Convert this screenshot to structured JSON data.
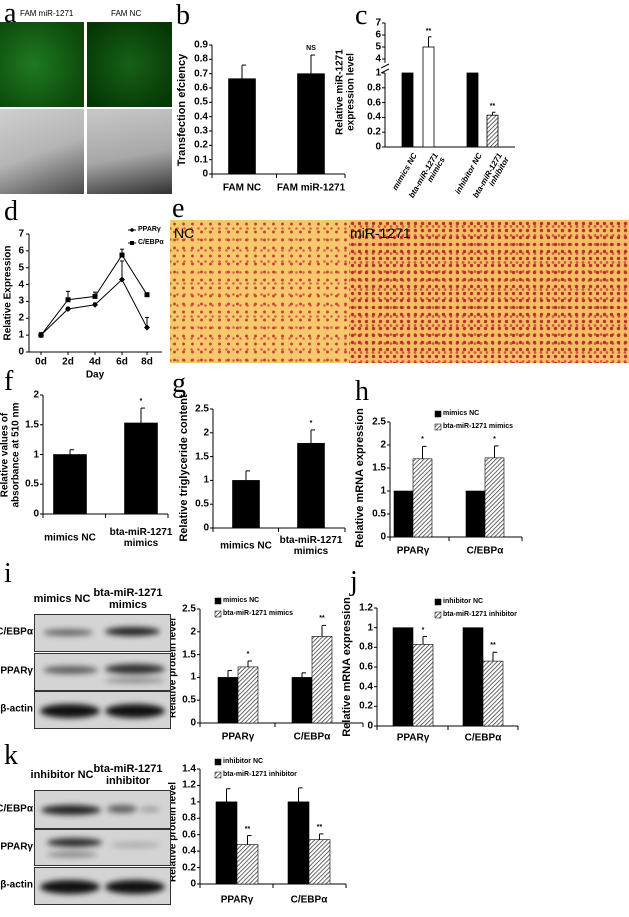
{
  "panels": {
    "a": "a",
    "b": "b",
    "c": "c",
    "d": "d",
    "e": "e",
    "f": "f",
    "g": "g",
    "h": "h",
    "i": "i",
    "j": "j",
    "k": "k"
  },
  "panel_a": {
    "left_label": "FAM miR-1271",
    "right_label": "FAM NC",
    "top_row": "fluorescence (green)",
    "bottom_row": "bright field"
  },
  "panel_e": {
    "left_label": "NC",
    "right_label": "miR-1271"
  },
  "panel_i_blot": {
    "columns": [
      "mimics NC",
      "bta-miR-1271 mimics"
    ],
    "rows": [
      "C/EBPα",
      "PPARγ",
      "β-actin"
    ]
  },
  "panel_k_blot": {
    "columns": [
      "inhibitor NC",
      "bta-miR-1271 inhibitor"
    ],
    "rows": [
      "C/EBPα",
      "PPARγ",
      "β-actin"
    ]
  },
  "colors": {
    "bar_black": "#000000",
    "hatch": "#555555",
    "green_fluorescence": "#1a6b1a",
    "oil_red": "#c8413a",
    "oil_background": "#f6c96c"
  },
  "chart_data": [
    {
      "panel": "b",
      "type": "bar",
      "ylabel": "Transfection efciency",
      "ylim": [
        0,
        0.9
      ],
      "yticks": [
        "0",
        "0.1",
        "0.2",
        "0.3",
        "0.4",
        "0.5",
        "0.6",
        "0.7",
        "0.8",
        "0.9"
      ],
      "categories": [
        "FAM NC",
        "FAM miR-1271"
      ],
      "series": [
        {
          "fill": "black",
          "values": [
            0.665,
            0.7
          ],
          "errors": [
            0.095,
            0.13
          ],
          "significance": [
            "",
            "NS"
          ]
        }
      ]
    },
    {
      "panel": "c",
      "type": "bar",
      "ylabel": "Relative miR-1271 expression level",
      "ylim": [
        0,
        7
      ],
      "axis_break": [
        1,
        4
      ],
      "yticks_lower": [
        "0",
        "0.2",
        "0.4",
        "0.6",
        "0.8",
        "1"
      ],
      "yticks_upper": [
        "4",
        "5",
        "6",
        "7"
      ],
      "categories": [
        "mimics NC",
        "bta-miR-1271 mimics",
        "inhibitor NC",
        "bta-miR-1271 inhibitor"
      ],
      "series": [
        {
          "fills": [
            "black",
            "white",
            "black",
            "hatch"
          ],
          "values": [
            1,
            5,
            1,
            0.43
          ],
          "errors": [
            0,
            0.85,
            0,
            0.04
          ],
          "significance": [
            "",
            "**",
            "",
            "**"
          ]
        }
      ]
    },
    {
      "panel": "d",
      "type": "line",
      "ylabel": "Relative Expression",
      "xlabel": "Day",
      "ylim": [
        0,
        7
      ],
      "yticks": [
        "0",
        "1",
        "2",
        "3",
        "4",
        "5",
        "6",
        "7"
      ],
      "categories": [
        "0d",
        "2d",
        "4d",
        "6d",
        "8d"
      ],
      "legend_position": "top-right",
      "series": [
        {
          "name": "PPARγ",
          "marker": "diamond",
          "values": [
            1.0,
            2.55,
            2.8,
            4.3,
            1.45
          ],
          "errors": [
            0.1,
            0.1,
            0.1,
            1.1,
            0.6
          ]
        },
        {
          "name": "C/EBPα",
          "marker": "square",
          "values": [
            1.0,
            3.1,
            3.3,
            5.75,
            3.4
          ],
          "errors": [
            0.15,
            0.5,
            0.25,
            0.35,
            0.1
          ]
        }
      ]
    },
    {
      "panel": "f",
      "type": "bar",
      "ylabel": "Relative values of absorbance at 510 nm",
      "ylim": [
        0,
        2
      ],
      "yticks": [
        "0",
        "0.5",
        "1",
        "1.5",
        "2"
      ],
      "categories": [
        "mimics NC",
        "bta-miR-1271 mimics"
      ],
      "series": [
        {
          "fill": "black",
          "values": [
            1.0,
            1.53
          ],
          "errors": [
            0.08,
            0.25
          ],
          "significance": [
            "",
            "*"
          ]
        }
      ]
    },
    {
      "panel": "g",
      "type": "bar",
      "ylabel": "Relative triglyceride content",
      "ylim": [
        0,
        2.5
      ],
      "yticks": [
        "0",
        "0.5",
        "1",
        "1.5",
        "2",
        "2.5"
      ],
      "categories": [
        "mimics NC",
        "bta-miR-1271 mimics"
      ],
      "series": [
        {
          "fill": "black",
          "values": [
            1.0,
            1.78
          ],
          "errors": [
            0.2,
            0.28
          ],
          "significance": [
            "",
            "*"
          ]
        }
      ]
    },
    {
      "panel": "h",
      "type": "bar",
      "ylabel": "Relative mRNA expression",
      "ylim": [
        0,
        2.5
      ],
      "yticks": [
        "0",
        "0.5",
        "1",
        "1.5",
        "2",
        "2.5"
      ],
      "categories": [
        "PPARγ",
        "C/EBPα"
      ],
      "legend_position": "top-right",
      "series": [
        {
          "name": "mimics NC",
          "fill": "black",
          "values": [
            1,
            1
          ],
          "errors": [
            0,
            0
          ],
          "significance": [
            "",
            ""
          ]
        },
        {
          "name": "bta-miR-1271 mimics",
          "fill": "hatch",
          "values": [
            1.7,
            1.72
          ],
          "errors": [
            0.27,
            0.26
          ],
          "significance": [
            "*",
            "*"
          ]
        }
      ]
    },
    {
      "panel": "i",
      "type": "bar",
      "ylabel": "Relative protein level",
      "ylim": [
        0,
        2.5
      ],
      "yticks": [
        "0",
        "0.5",
        "1",
        "1.5",
        "2",
        "2.5"
      ],
      "categories": [
        "PPARγ",
        "C/EBPα"
      ],
      "legend_position": "top",
      "series": [
        {
          "name": "mimics NC",
          "fill": "black",
          "values": [
            1,
            1
          ],
          "errors": [
            0.15,
            0.1
          ],
          "significance": [
            "",
            ""
          ]
        },
        {
          "name": "bta-miR-1271 mimics",
          "fill": "hatch",
          "values": [
            1.23,
            1.9
          ],
          "errors": [
            0.13,
            0.24
          ],
          "significance": [
            "*",
            "**"
          ]
        }
      ]
    },
    {
      "panel": "j",
      "type": "bar",
      "ylabel": "Relative mRNA expression",
      "ylim": [
        0,
        1.2
      ],
      "yticks": [
        "0",
        "0.2",
        "0.4",
        "0.6",
        "0.8",
        "1",
        "1.2"
      ],
      "categories": [
        "PPARγ",
        "C/EBPα"
      ],
      "legend_position": "top-right",
      "series": [
        {
          "name": "inhibitor NC",
          "fill": "black",
          "values": [
            1,
            1
          ],
          "errors": [
            0,
            0
          ],
          "significance": [
            "",
            ""
          ]
        },
        {
          "name": "bta-miR-1271 inhibitor",
          "fill": "hatch",
          "values": [
            0.83,
            0.66
          ],
          "errors": [
            0.08,
            0.09
          ],
          "significance": [
            "*",
            "**"
          ]
        }
      ]
    },
    {
      "panel": "k",
      "type": "bar",
      "ylabel": "Relative protein level",
      "ylim": [
        0,
        1.4
      ],
      "yticks": [
        "0",
        "0.2",
        "0.4",
        "0.6",
        "0.8",
        "1",
        "1.2",
        "1.4"
      ],
      "categories": [
        "PPARγ",
        "C/EBPα"
      ],
      "legend_position": "top",
      "series": [
        {
          "name": "inhibitor NC",
          "fill": "black",
          "values": [
            1,
            1
          ],
          "errors": [
            0.16,
            0.17
          ],
          "significance": [
            "",
            ""
          ]
        },
        {
          "name": "bta-miR-1271 inhibitor",
          "fill": "hatch",
          "values": [
            0.48,
            0.54
          ],
          "errors": [
            0.11,
            0.07
          ],
          "significance": [
            "**",
            "**"
          ]
        }
      ]
    }
  ]
}
